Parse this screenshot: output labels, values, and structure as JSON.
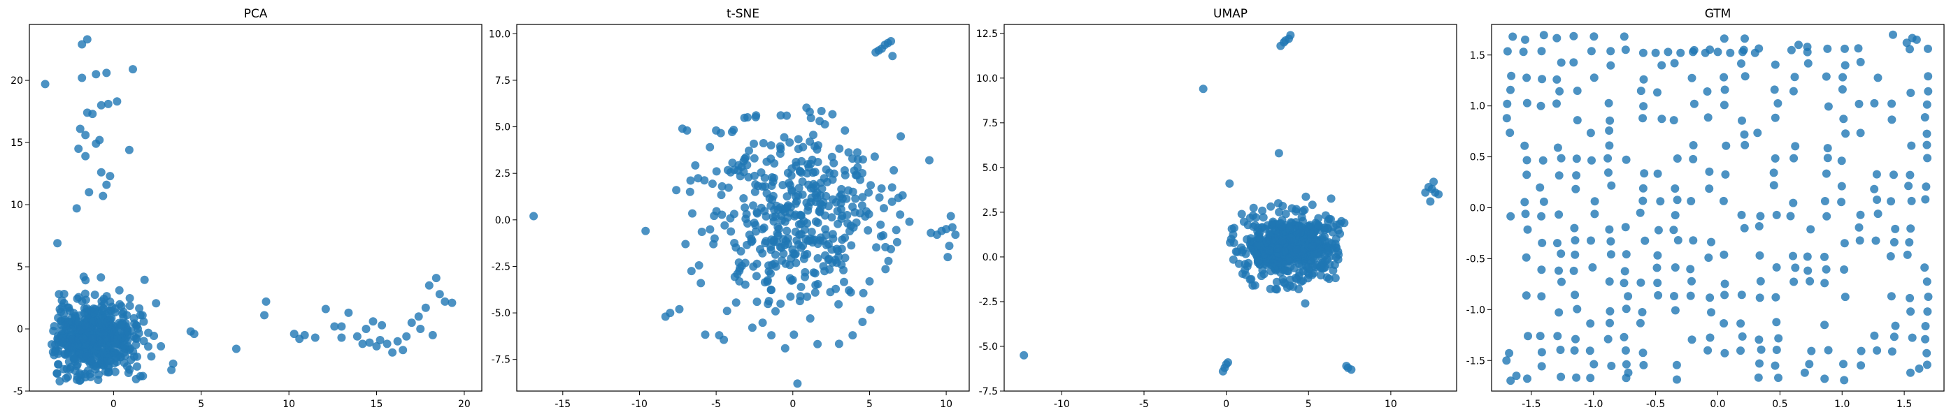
{
  "chart_data": [
    {
      "type": "scatter",
      "title": "PCA",
      "xlim": [
        -4.8,
        21.0
      ],
      "ylim": [
        -5.0,
        24.5
      ],
      "xticks": [
        "0",
        "5",
        "10",
        "15",
        "20"
      ],
      "yticks": [
        "-5",
        "0",
        "5",
        "10",
        "15",
        "20"
      ],
      "color": "#1f77b4",
      "points": [
        [
          -3.9,
          19.7
        ],
        [
          -3.2,
          6.9
        ],
        [
          -1.8,
          22.9
        ],
        [
          -1.5,
          23.3
        ],
        [
          -1.8,
          20.2
        ],
        [
          -1.0,
          20.5
        ],
        [
          -0.4,
          20.6
        ],
        [
          0.2,
          18.3
        ],
        [
          -0.3,
          18.1
        ],
        [
          1.1,
          20.9
        ],
        [
          -1.5,
          17.4
        ],
        [
          -1.2,
          17.3
        ],
        [
          -1.9,
          16.1
        ],
        [
          -1.6,
          15.6
        ],
        [
          -0.8,
          15.2
        ],
        [
          -1.0,
          14.9
        ],
        [
          -2.0,
          14.5
        ],
        [
          -1.6,
          13.9
        ],
        [
          -0.7,
          12.6
        ],
        [
          -0.2,
          12.3
        ],
        [
          -0.4,
          11.6
        ],
        [
          -0.6,
          10.7
        ],
        [
          -1.4,
          11.0
        ],
        [
          0.9,
          14.4
        ],
        [
          -2.1,
          9.7
        ],
        [
          -0.7,
          18.0
        ],
        [
          4.4,
          -0.2
        ],
        [
          7.0,
          -1.6
        ],
        [
          8.7,
          2.2
        ],
        [
          8.6,
          1.1
        ],
        [
          10.3,
          -0.4
        ],
        [
          10.6,
          -0.8
        ],
        [
          10.9,
          -0.5
        ],
        [
          11.5,
          -0.7
        ],
        [
          12.1,
          1.6
        ],
        [
          12.6,
          0.2
        ],
        [
          13.0,
          -0.7
        ],
        [
          13.4,
          1.3
        ],
        [
          13.9,
          -0.6
        ],
        [
          14.4,
          0.0
        ],
        [
          14.6,
          -1.1
        ],
        [
          14.8,
          0.6
        ],
        [
          15.0,
          -1.4
        ],
        [
          15.2,
          -0.9
        ],
        [
          15.6,
          -1.2
        ],
        [
          15.9,
          -1.9
        ],
        [
          16.2,
          -1.0
        ],
        [
          16.7,
          -0.6
        ],
        [
          17.0,
          0.5
        ],
        [
          17.4,
          1.0
        ],
        [
          17.8,
          1.7
        ],
        [
          18.0,
          3.5
        ],
        [
          18.4,
          4.1
        ],
        [
          18.6,
          2.8
        ],
        [
          18.9,
          2.2
        ],
        [
          19.3,
          2.1
        ],
        [
          18.2,
          -0.5
        ],
        [
          17.5,
          0.0
        ],
        [
          16.5,
          -1.7
        ],
        [
          15.3,
          0.3
        ],
        [
          14.2,
          -1.2
        ],
        [
          13.0,
          0.2
        ],
        [
          3.3,
          -3.3
        ],
        [
          3.4,
          -2.8
        ],
        [
          2.7,
          -1.4
        ],
        [
          4.6,
          -0.4
        ]
      ],
      "blob": {
        "cx": -1.2,
        "cy": -0.7,
        "sx": 1.25,
        "sy": 1.55,
        "n": 540,
        "xmin": -3.6,
        "xmax": 2.6,
        "ymin": -4.4,
        "ymax": 4.4,
        "seed": 11
      }
    },
    {
      "type": "scatter",
      "title": "t-SNE",
      "xlim": [
        -18.0,
        11.5
      ],
      "ylim": [
        -9.2,
        10.5
      ],
      "xticks": [
        "-15",
        "-10",
        "-5",
        "0",
        "5",
        "10"
      ],
      "yticks": [
        "-7.5",
        "-5.0",
        "-2.5",
        "0.0",
        "2.5",
        "5.0",
        "7.5",
        "10.0"
      ],
      "color": "#1f77b4",
      "points": [
        [
          -16.9,
          0.2
        ],
        [
          -9.6,
          -0.6
        ],
        [
          -8.3,
          -5.2
        ],
        [
          -8.0,
          -5.0
        ],
        [
          -7.4,
          -4.8
        ],
        [
          -7.2,
          4.9
        ],
        [
          -6.9,
          4.8
        ],
        [
          -7.0,
          -1.3
        ],
        [
          -5.0,
          4.8
        ],
        [
          -6.7,
          1.5
        ],
        [
          -7.6,
          1.6
        ],
        [
          -6.0,
          -3.4
        ],
        [
          -5.1,
          -1.0
        ],
        [
          5.4,
          9.0
        ],
        [
          5.6,
          9.1
        ],
        [
          5.8,
          9.2
        ],
        [
          6.0,
          9.4
        ],
        [
          6.2,
          9.5
        ],
        [
          6.4,
          9.6
        ],
        [
          6.5,
          8.8
        ],
        [
          8.9,
          3.2
        ],
        [
          9.0,
          -0.7
        ],
        [
          9.4,
          -0.8
        ],
        [
          9.7,
          -0.6
        ],
        [
          10.0,
          -0.5
        ],
        [
          10.4,
          -0.4
        ],
        [
          10.6,
          -0.8
        ],
        [
          10.2,
          -1.4
        ],
        [
          10.1,
          -2.0
        ],
        [
          10.3,
          0.2
        ],
        [
          0.3,
          -8.8
        ],
        [
          -1.4,
          -6.2
        ],
        [
          -0.5,
          -6.9
        ],
        [
          3.9,
          -6.2
        ],
        [
          -4.8,
          -6.2
        ],
        [
          7.6,
          -0.1
        ],
        [
          6.8,
          -1.2
        ],
        [
          -0.4,
          5.6
        ],
        [
          1.1,
          5.8
        ],
        [
          3.4,
          4.8
        ]
      ],
      "blob": {
        "cx": 0.0,
        "cy": 0.0,
        "sx": 2.9,
        "sy": 2.7,
        "n": 420,
        "xmin": -6.8,
        "xmax": 7.2,
        "ymin": -6.8,
        "ymax": 6.2,
        "seed": 23
      }
    },
    {
      "type": "scatter",
      "title": "UMAP",
      "xlim": [
        -13.5,
        14.0
      ],
      "ylim": [
        -7.5,
        13.0
      ],
      "xticks": [
        "-10",
        "-5",
        "0",
        "5",
        "10"
      ],
      "yticks": [
        "-7.5",
        "-5.0",
        "-2.5",
        "0.0",
        "2.5",
        "5.0",
        "7.5",
        "10.0",
        "12.5"
      ],
      "color": "#1f77b4",
      "points": [
        [
          -12.3,
          -5.5
        ],
        [
          -1.4,
          9.4
        ],
        [
          3.2,
          5.8
        ],
        [
          0.2,
          4.1
        ],
        [
          3.3,
          11.8
        ],
        [
          3.5,
          12.0
        ],
        [
          3.6,
          12.1
        ],
        [
          3.8,
          12.2
        ],
        [
          3.9,
          12.4
        ],
        [
          -0.2,
          -6.4
        ],
        [
          -0.1,
          -6.2
        ],
        [
          0.0,
          -6.0
        ],
        [
          0.1,
          -5.9
        ],
        [
          7.3,
          -6.1
        ],
        [
          7.4,
          -6.2
        ],
        [
          7.6,
          -6.3
        ],
        [
          12.1,
          3.6
        ],
        [
          12.3,
          3.9
        ],
        [
          12.6,
          4.2
        ],
        [
          12.4,
          3.1
        ],
        [
          12.7,
          3.6
        ],
        [
          12.9,
          3.5
        ],
        [
          12.5,
          3.8
        ],
        [
          4.8,
          -2.6
        ],
        [
          4.4,
          -1.8
        ],
        [
          1.6,
          -1.6
        ],
        [
          3.0,
          -1.8
        ],
        [
          6.7,
          1.8
        ],
        [
          7.0,
          2.0
        ],
        [
          0.3,
          1.0
        ],
        [
          0.6,
          0.3
        ]
      ],
      "blob": {
        "cx": 4.0,
        "cy": 0.6,
        "sx": 1.55,
        "sy": 0.95,
        "n": 520,
        "xmin": 0.2,
        "xmax": 7.2,
        "ymin": -2.0,
        "ymax": 3.4,
        "seed": 37
      }
    },
    {
      "type": "scatter",
      "title": "GTM",
      "xlim": [
        -1.82,
        1.82
      ],
      "ylim": [
        -1.8,
        1.8
      ],
      "xticks": [
        "-1.5",
        "-1.0",
        "-0.5",
        "0.0",
        "0.5",
        "1.0",
        "1.5"
      ],
      "yticks": [
        "-1.5",
        "-1.0",
        "-0.5",
        "0.0",
        "0.5",
        "1.0",
        "1.5"
      ],
      "color": "#1f77b4",
      "points": [
        [
          -0.6,
          1.52
        ],
        [
          -0.5,
          1.52
        ],
        [
          -0.4,
          1.53
        ],
        [
          -0.3,
          1.52
        ],
        [
          -0.2,
          1.53
        ],
        [
          -0.1,
          1.52
        ],
        [
          0.0,
          1.53
        ],
        [
          0.1,
          1.52
        ],
        [
          0.2,
          1.53
        ],
        [
          0.3,
          1.52
        ],
        [
          -1.65,
          1.68
        ],
        [
          -1.55,
          1.65
        ],
        [
          1.52,
          1.62
        ],
        [
          1.6,
          1.65
        ],
        [
          0.65,
          1.6
        ],
        [
          0.72,
          1.58
        ],
        [
          -1.7,
          -1.5
        ],
        [
          -1.62,
          -1.65
        ],
        [
          1.55,
          -1.62
        ],
        [
          1.62,
          -1.58
        ],
        [
          -0.72,
          -1.62
        ],
        [
          0.7,
          -1.62
        ]
      ],
      "blob": {
        "grid": 26,
        "extent": 1.68,
        "keep": 0.47,
        "jit": 0.04,
        "seed": 53
      }
    }
  ]
}
